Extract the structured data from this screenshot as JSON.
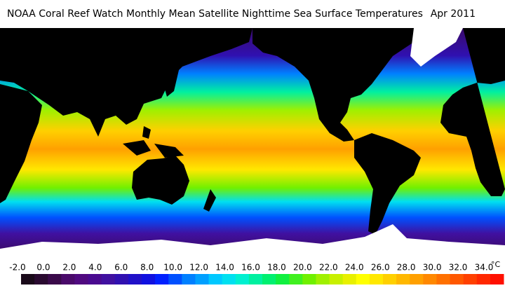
{
  "header": {
    "title": "NOAA Coral Reef Watch Monthly Mean Satellite Nighttime Sea Surface Temperatures",
    "date": "Apr 2011"
  },
  "colorbar": {
    "ticks": [
      {
        "value": -2,
        "label": "-2.0"
      },
      {
        "value": 0,
        "label": "0.0"
      },
      {
        "value": 2,
        "label": "2.0"
      },
      {
        "value": 4,
        "label": "4.0"
      },
      {
        "value": 6,
        "label": "6.0"
      },
      {
        "value": 8,
        "label": "8.0"
      },
      {
        "value": 10,
        "label": "10.0"
      },
      {
        "value": 12,
        "label": "12.0"
      },
      {
        "value": 14,
        "label": "14.0"
      },
      {
        "value": 16,
        "label": "16.0"
      },
      {
        "value": 18,
        "label": "18.0"
      },
      {
        "value": 20,
        "label": "20.0"
      },
      {
        "value": 22,
        "label": "22.0"
      },
      {
        "value": 24,
        "label": "24.0"
      },
      {
        "value": 26,
        "label": "26.0"
      },
      {
        "value": 28,
        "label": "28.0"
      },
      {
        "value": 30,
        "label": "30.0"
      },
      {
        "value": 32,
        "label": "32.0"
      },
      {
        "value": 34,
        "label": "34.0"
      }
    ],
    "unit": "°C",
    "colors": [
      "#1a0a1a",
      "#2a0a30",
      "#3a0a4a",
      "#4a0a6a",
      "#500a80",
      "#4a0a90",
      "#4010a0",
      "#3010b0",
      "#2010c8",
      "#1010e0",
      "#0020ff",
      "#0050ff",
      "#0080ff",
      "#00a0ff",
      "#00c8ff",
      "#00e0f0",
      "#00f0d0",
      "#00f0a0",
      "#00f070",
      "#10f040",
      "#40f020",
      "#70f000",
      "#a0f000",
      "#c8f000",
      "#e8f000",
      "#ffff00",
      "#ffe800",
      "#ffd000",
      "#ffb800",
      "#ffa000",
      "#ff8800",
      "#ff7000",
      "#ff5800",
      "#ff4000",
      "#ff2800",
      "#ff1000"
    ]
  }
}
